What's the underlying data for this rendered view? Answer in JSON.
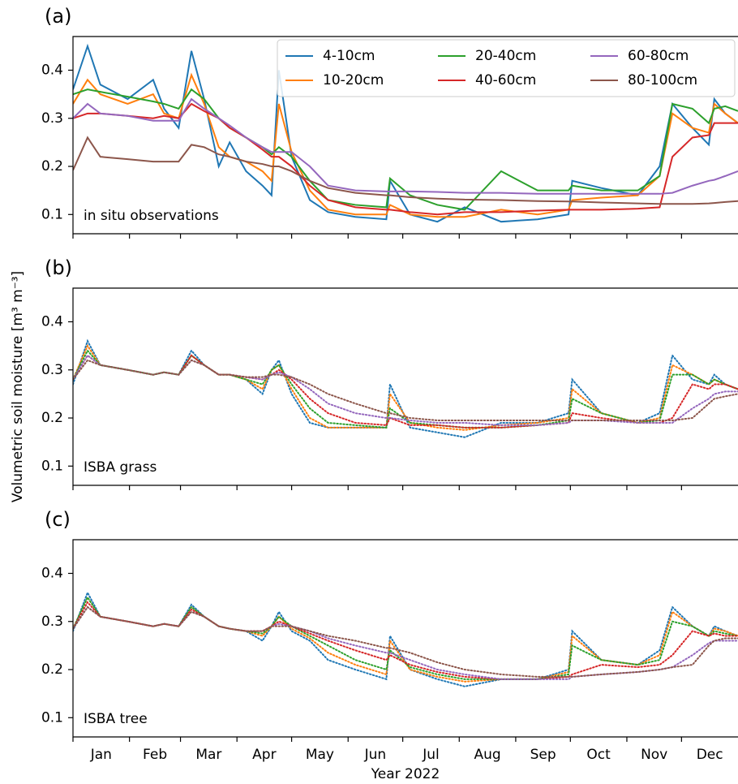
{
  "chart_data": [
    {
      "type": "line",
      "label": "(a)",
      "annotation": "in situ observations",
      "x": [
        0,
        8,
        15,
        30,
        44,
        50,
        58,
        65,
        72,
        80,
        86,
        95,
        104,
        109,
        113,
        120,
        130,
        140,
        155,
        172,
        174,
        185,
        200,
        215,
        235,
        255,
        272,
        274,
        290,
        310,
        322,
        329,
        340,
        349,
        352,
        358,
        365
      ],
      "xlim": [
        0,
        365
      ],
      "xticks": [
        0,
        31,
        59,
        90,
        120,
        151,
        181,
        212,
        243,
        273,
        304,
        334
      ],
      "ylim": [
        0.06,
        0.47
      ],
      "yticks": [
        0.1,
        0.2,
        0.3,
        0.4
      ],
      "legend": "upper right",
      "linestyle": "solid",
      "series": [
        {
          "name": "4-10cm",
          "color": "#1f77b4",
          "values": [
            0.36,
            0.45,
            0.37,
            0.34,
            0.38,
            0.32,
            0.28,
            0.44,
            0.34,
            0.2,
            0.25,
            0.19,
            0.16,
            0.14,
            0.4,
            0.22,
            0.13,
            0.105,
            0.095,
            0.09,
            0.17,
            0.1,
            0.085,
            0.115,
            0.085,
            0.09,
            0.1,
            0.17,
            0.155,
            0.14,
            0.2,
            0.33,
            0.28,
            0.245,
            0.34,
            0.31,
            0.29
          ]
        },
        {
          "name": "10-20cm",
          "color": "#ff7f0e",
          "values": [
            0.33,
            0.38,
            0.35,
            0.33,
            0.35,
            0.31,
            0.3,
            0.39,
            0.33,
            0.24,
            0.22,
            0.21,
            0.19,
            0.17,
            0.33,
            0.23,
            0.15,
            0.11,
            0.1,
            0.1,
            0.12,
            0.1,
            0.095,
            0.095,
            0.11,
            0.1,
            0.11,
            0.13,
            0.135,
            0.14,
            0.18,
            0.31,
            0.28,
            0.27,
            0.33,
            0.31,
            0.29
          ]
        },
        {
          "name": "20-40cm",
          "color": "#2ca02c",
          "values": [
            0.35,
            0.36,
            0.355,
            0.345,
            0.335,
            0.33,
            0.32,
            0.36,
            0.34,
            0.3,
            0.28,
            0.26,
            0.24,
            0.225,
            0.24,
            0.22,
            0.17,
            0.13,
            0.12,
            0.115,
            0.175,
            0.14,
            0.12,
            0.11,
            0.19,
            0.15,
            0.15,
            0.16,
            0.15,
            0.15,
            0.18,
            0.33,
            0.32,
            0.29,
            0.32,
            0.325,
            0.315
          ]
        },
        {
          "name": "40-60cm",
          "color": "#d62728",
          "values": [
            0.3,
            0.31,
            0.31,
            0.305,
            0.3,
            0.305,
            0.3,
            0.33,
            0.315,
            0.3,
            0.28,
            0.26,
            0.235,
            0.22,
            0.22,
            0.2,
            0.16,
            0.13,
            0.115,
            0.11,
            0.11,
            0.105,
            0.1,
            0.105,
            0.105,
            0.108,
            0.11,
            0.11,
            0.11,
            0.112,
            0.115,
            0.22,
            0.26,
            0.265,
            0.29,
            0.29,
            0.29
          ]
        },
        {
          "name": "60-80cm",
          "color": "#9467bd",
          "values": [
            0.3,
            0.33,
            0.31,
            0.305,
            0.295,
            0.295,
            0.295,
            0.34,
            0.32,
            0.3,
            0.285,
            0.26,
            0.24,
            0.23,
            0.23,
            0.23,
            0.2,
            0.16,
            0.15,
            0.148,
            0.148,
            0.148,
            0.147,
            0.145,
            0.145,
            0.143,
            0.143,
            0.143,
            0.143,
            0.143,
            0.143,
            0.145,
            0.16,
            0.17,
            0.172,
            0.18,
            0.19
          ]
        },
        {
          "name": "80-100cm",
          "color": "#8c564b",
          "values": [
            0.192,
            0.26,
            0.22,
            0.215,
            0.21,
            0.21,
            0.21,
            0.245,
            0.24,
            0.225,
            0.22,
            0.21,
            0.205,
            0.2,
            0.2,
            0.19,
            0.17,
            0.155,
            0.145,
            0.14,
            0.14,
            0.136,
            0.133,
            0.131,
            0.13,
            0.128,
            0.127,
            0.127,
            0.125,
            0.123,
            0.122,
            0.122,
            0.122,
            0.123,
            0.124,
            0.126,
            0.128
          ]
        }
      ]
    },
    {
      "type": "line",
      "label": "(b)",
      "annotation": "ISBA grass",
      "ylabel": "Volumetric soil moisture [m³ m⁻³]",
      "x": [
        0,
        8,
        15,
        30,
        44,
        50,
        58,
        65,
        72,
        80,
        86,
        95,
        104,
        109,
        113,
        120,
        130,
        140,
        155,
        172,
        174,
        185,
        200,
        215,
        235,
        255,
        272,
        274,
        290,
        310,
        322,
        329,
        340,
        349,
        352,
        358,
        365
      ],
      "xlim": [
        0,
        365
      ],
      "xticks": [
        0,
        31,
        59,
        90,
        120,
        151,
        181,
        212,
        243,
        273,
        304,
        334
      ],
      "ylim": [
        0.06,
        0.47
      ],
      "yticks": [
        0.1,
        0.2,
        0.3,
        0.4
      ],
      "linestyle": "dotted",
      "series": [
        {
          "color": "#1f77b4",
          "values": [
            0.27,
            0.36,
            0.31,
            0.3,
            0.29,
            0.295,
            0.29,
            0.34,
            0.31,
            0.29,
            0.29,
            0.28,
            0.25,
            0.3,
            0.32,
            0.25,
            0.19,
            0.18,
            0.18,
            0.18,
            0.27,
            0.18,
            0.17,
            0.16,
            0.19,
            0.19,
            0.21,
            0.28,
            0.21,
            0.19,
            0.21,
            0.33,
            0.28,
            0.27,
            0.29,
            0.27,
            0.26
          ]
        },
        {
          "color": "#ff7f0e",
          "values": [
            0.28,
            0.35,
            0.31,
            0.3,
            0.29,
            0.295,
            0.29,
            0.33,
            0.31,
            0.29,
            0.29,
            0.28,
            0.26,
            0.3,
            0.31,
            0.26,
            0.2,
            0.18,
            0.18,
            0.18,
            0.25,
            0.19,
            0.18,
            0.175,
            0.185,
            0.19,
            0.2,
            0.26,
            0.21,
            0.19,
            0.2,
            0.31,
            0.29,
            0.27,
            0.28,
            0.27,
            0.26
          ]
        },
        {
          "color": "#2ca02c",
          "values": [
            0.28,
            0.34,
            0.31,
            0.3,
            0.29,
            0.295,
            0.29,
            0.33,
            0.31,
            0.29,
            0.29,
            0.28,
            0.27,
            0.3,
            0.31,
            0.27,
            0.22,
            0.19,
            0.185,
            0.18,
            0.22,
            0.19,
            0.185,
            0.18,
            0.18,
            0.185,
            0.195,
            0.24,
            0.21,
            0.19,
            0.195,
            0.29,
            0.29,
            0.27,
            0.28,
            0.27,
            0.26
          ]
        },
        {
          "color": "#d62728",
          "values": [
            0.28,
            0.33,
            0.31,
            0.3,
            0.29,
            0.295,
            0.29,
            0.33,
            0.31,
            0.29,
            0.29,
            0.285,
            0.28,
            0.29,
            0.3,
            0.28,
            0.24,
            0.21,
            0.19,
            0.185,
            0.2,
            0.185,
            0.185,
            0.18,
            0.18,
            0.185,
            0.19,
            0.21,
            0.2,
            0.19,
            0.19,
            0.2,
            0.27,
            0.26,
            0.27,
            0.27,
            0.26
          ]
        },
        {
          "color": "#9467bd",
          "values": [
            0.28,
            0.33,
            0.31,
            0.3,
            0.29,
            0.295,
            0.29,
            0.32,
            0.31,
            0.29,
            0.29,
            0.285,
            0.28,
            0.29,
            0.295,
            0.285,
            0.26,
            0.23,
            0.21,
            0.2,
            0.2,
            0.195,
            0.19,
            0.19,
            0.185,
            0.185,
            0.19,
            0.195,
            0.195,
            0.19,
            0.19,
            0.19,
            0.22,
            0.24,
            0.25,
            0.255,
            0.255
          ]
        },
        {
          "color": "#8c564b",
          "values": [
            0.28,
            0.32,
            0.31,
            0.3,
            0.29,
            0.295,
            0.29,
            0.32,
            0.31,
            0.29,
            0.29,
            0.285,
            0.285,
            0.29,
            0.29,
            0.285,
            0.27,
            0.25,
            0.23,
            0.21,
            0.21,
            0.2,
            0.195,
            0.195,
            0.195,
            0.195,
            0.195,
            0.195,
            0.195,
            0.195,
            0.195,
            0.195,
            0.2,
            0.23,
            0.24,
            0.245,
            0.25
          ]
        }
      ]
    },
    {
      "type": "line",
      "label": "(c)",
      "annotation": "ISBA tree",
      "xlabel": "Year 2022",
      "x": [
        0,
        8,
        15,
        30,
        44,
        50,
        58,
        65,
        72,
        80,
        86,
        95,
        104,
        109,
        113,
        120,
        130,
        140,
        155,
        172,
        174,
        185,
        200,
        215,
        235,
        255,
        272,
        274,
        290,
        310,
        322,
        329,
        340,
        349,
        352,
        358,
        365
      ],
      "xlim": [
        0,
        365
      ],
      "xticks": [
        {
          "value": 0,
          "label": "Jan"
        },
        {
          "value": 31,
          "label": "Feb"
        },
        {
          "value": 59,
          "label": "Mar"
        },
        {
          "value": 90,
          "label": "Apr"
        },
        {
          "value": 120,
          "label": "May"
        },
        {
          "value": 151,
          "label": "Jun"
        },
        {
          "value": 181,
          "label": "Jul"
        },
        {
          "value": 212,
          "label": "Aug"
        },
        {
          "value": 243,
          "label": "Sep"
        },
        {
          "value": 273,
          "label": "Oct"
        },
        {
          "value": 304,
          "label": "Nov"
        },
        {
          "value": 334,
          "label": "Dec"
        }
      ],
      "ylim": [
        0.06,
        0.47
      ],
      "yticks": [
        0.1,
        0.2,
        0.3,
        0.4
      ],
      "linestyle": "dotted",
      "series": [
        {
          "color": "#1f77b4",
          "values": [
            0.28,
            0.36,
            0.31,
            0.3,
            0.29,
            0.295,
            0.29,
            0.335,
            0.31,
            0.29,
            0.285,
            0.28,
            0.26,
            0.29,
            0.32,
            0.28,
            0.26,
            0.22,
            0.2,
            0.18,
            0.27,
            0.2,
            0.18,
            0.165,
            0.18,
            0.18,
            0.2,
            0.28,
            0.22,
            0.21,
            0.24,
            0.33,
            0.29,
            0.27,
            0.29,
            0.28,
            0.27
          ]
        },
        {
          "color": "#ff7f0e",
          "values": [
            0.285,
            0.35,
            0.31,
            0.3,
            0.29,
            0.295,
            0.29,
            0.33,
            0.31,
            0.29,
            0.285,
            0.28,
            0.27,
            0.29,
            0.31,
            0.285,
            0.265,
            0.235,
            0.21,
            0.19,
            0.26,
            0.2,
            0.185,
            0.175,
            0.18,
            0.18,
            0.195,
            0.27,
            0.22,
            0.21,
            0.23,
            0.32,
            0.29,
            0.27,
            0.285,
            0.28,
            0.27
          ]
        },
        {
          "color": "#2ca02c",
          "values": [
            0.285,
            0.35,
            0.31,
            0.3,
            0.29,
            0.295,
            0.29,
            0.33,
            0.31,
            0.29,
            0.285,
            0.28,
            0.275,
            0.29,
            0.31,
            0.29,
            0.27,
            0.25,
            0.22,
            0.2,
            0.24,
            0.205,
            0.19,
            0.18,
            0.18,
            0.18,
            0.19,
            0.25,
            0.22,
            0.21,
            0.22,
            0.3,
            0.29,
            0.27,
            0.28,
            0.275,
            0.27
          ]
        },
        {
          "color": "#d62728",
          "values": [
            0.285,
            0.34,
            0.31,
            0.3,
            0.29,
            0.295,
            0.29,
            0.325,
            0.31,
            0.29,
            0.285,
            0.28,
            0.28,
            0.29,
            0.3,
            0.29,
            0.275,
            0.26,
            0.24,
            0.22,
            0.23,
            0.21,
            0.195,
            0.185,
            0.18,
            0.18,
            0.185,
            0.19,
            0.21,
            0.205,
            0.21,
            0.23,
            0.28,
            0.27,
            0.275,
            0.27,
            0.27
          ]
        },
        {
          "color": "#9467bd",
          "values": [
            0.285,
            0.33,
            0.31,
            0.3,
            0.29,
            0.295,
            0.29,
            0.32,
            0.31,
            0.29,
            0.285,
            0.28,
            0.28,
            0.29,
            0.295,
            0.29,
            0.28,
            0.265,
            0.25,
            0.235,
            0.235,
            0.22,
            0.2,
            0.19,
            0.18,
            0.18,
            0.18,
            0.185,
            0.19,
            0.195,
            0.2,
            0.205,
            0.23,
            0.255,
            0.26,
            0.26,
            0.26
          ]
        },
        {
          "color": "#8c564b",
          "values": [
            0.285,
            0.33,
            0.31,
            0.3,
            0.29,
            0.295,
            0.29,
            0.32,
            0.31,
            0.29,
            0.285,
            0.28,
            0.28,
            0.29,
            0.29,
            0.29,
            0.28,
            0.27,
            0.26,
            0.245,
            0.245,
            0.235,
            0.215,
            0.2,
            0.19,
            0.185,
            0.185,
            0.185,
            0.19,
            0.195,
            0.2,
            0.205,
            0.21,
            0.25,
            0.26,
            0.265,
            0.265
          ]
        }
      ]
    }
  ]
}
